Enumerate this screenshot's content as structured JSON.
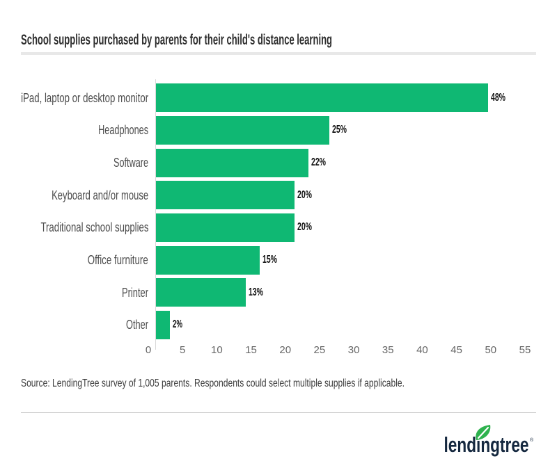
{
  "title": "School supplies purchased by parents for their child's distance learning",
  "source": "Source: LendingTree survey of 1,005 parents. Respondents could select multiple supplies if applicable.",
  "logo": {
    "text": "lendingtree",
    "registered": "®"
  },
  "colors": {
    "bar": "#0fb873",
    "leaf": "#2eb24e",
    "leaf_vein": "#ffffff",
    "navy": "#15283f"
  },
  "chart_data": {
    "type": "bar",
    "orientation": "horizontal",
    "title": "School supplies purchased by parents for their child's distance learning",
    "categories": [
      "iPad, laptop or desktop monitor",
      "Headphones",
      "Software",
      "Keyboard and/or mouse",
      "Traditional school supplies",
      "Office furniture",
      "Printer",
      "Other"
    ],
    "values": [
      48,
      25,
      22,
      20,
      20,
      15,
      13,
      2
    ],
    "value_labels": [
      "48%",
      "25%",
      "22%",
      "20%",
      "20%",
      "15%",
      "13%",
      "2%"
    ],
    "axis_ticks": [
      0,
      5,
      10,
      15,
      20,
      25,
      30,
      35,
      40,
      45,
      50,
      55
    ],
    "xlim": [
      0,
      55
    ],
    "xlabel": "",
    "ylabel": "",
    "grid": false,
    "legend": false,
    "unit": "%"
  }
}
